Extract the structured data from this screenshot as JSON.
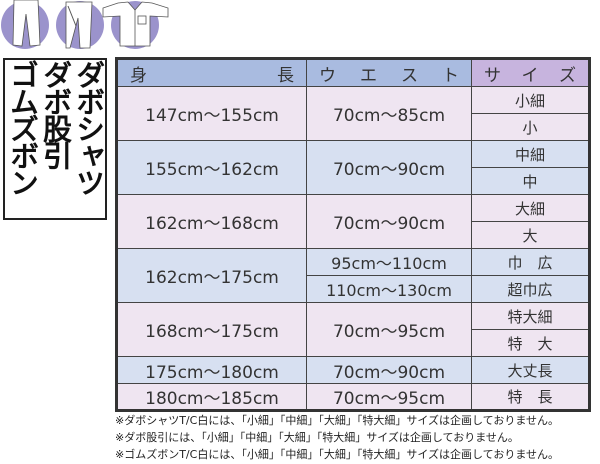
{
  "icons": [
    "pants-icon",
    "momohiki-icon",
    "shirt-icon"
  ],
  "colors": {
    "header_blue": "#a9bbe0",
    "header_purple": "#c7b4de",
    "row_pink": "#efe5f1",
    "row_blue": "#d7e0f1",
    "icon_circle": "#9b93cc"
  },
  "product_labels": [
    "ダボシャツ",
    "ダボ股引",
    "ゴムズボン"
  ],
  "table": {
    "headers": {
      "height": [
        "身",
        "長"
      ],
      "waist": [
        "ウ",
        "エ",
        "ス",
        "ト"
      ],
      "size": [
        "サ",
        "イ",
        "ズ"
      ]
    },
    "rows": [
      {
        "height": "147cm～155cm",
        "waist": "70cm～85cm",
        "sizes": [
          "小細",
          "小"
        ]
      },
      {
        "height": "155cm～162cm",
        "waist": "70cm～90cm",
        "sizes": [
          "中細",
          "中"
        ]
      },
      {
        "height": "162cm～168cm",
        "waist": "70cm～90cm",
        "sizes": [
          "大細",
          "大"
        ]
      },
      {
        "height": "162cm～175cm",
        "waists": [
          "95cm～110cm",
          "110cm～130cm"
        ],
        "sizes": [
          "巾　広",
          "超巾広"
        ]
      },
      {
        "height": "168cm～175cm",
        "waist": "70cm～95cm",
        "sizes": [
          "特大細",
          "特　大"
        ]
      },
      {
        "height": "175cm～180cm",
        "waist": "70cm～90cm",
        "size": "大丈長"
      },
      {
        "height": "180cm～185cm",
        "waist": "70cm～95cm",
        "size": "特　長"
      }
    ]
  },
  "notes": [
    "※ダボシャツT/C白には、「小細」「中細」「大細」「特大細」サイズは企画しておりません。",
    "※ダボ股引には、「小細」「中細」「大細」「特大細」サイズは企画しておりません。",
    "※ゴムズボンT/C白には、「小細」「中細」「大細」「特大細」サイズは企画しておりません。"
  ]
}
